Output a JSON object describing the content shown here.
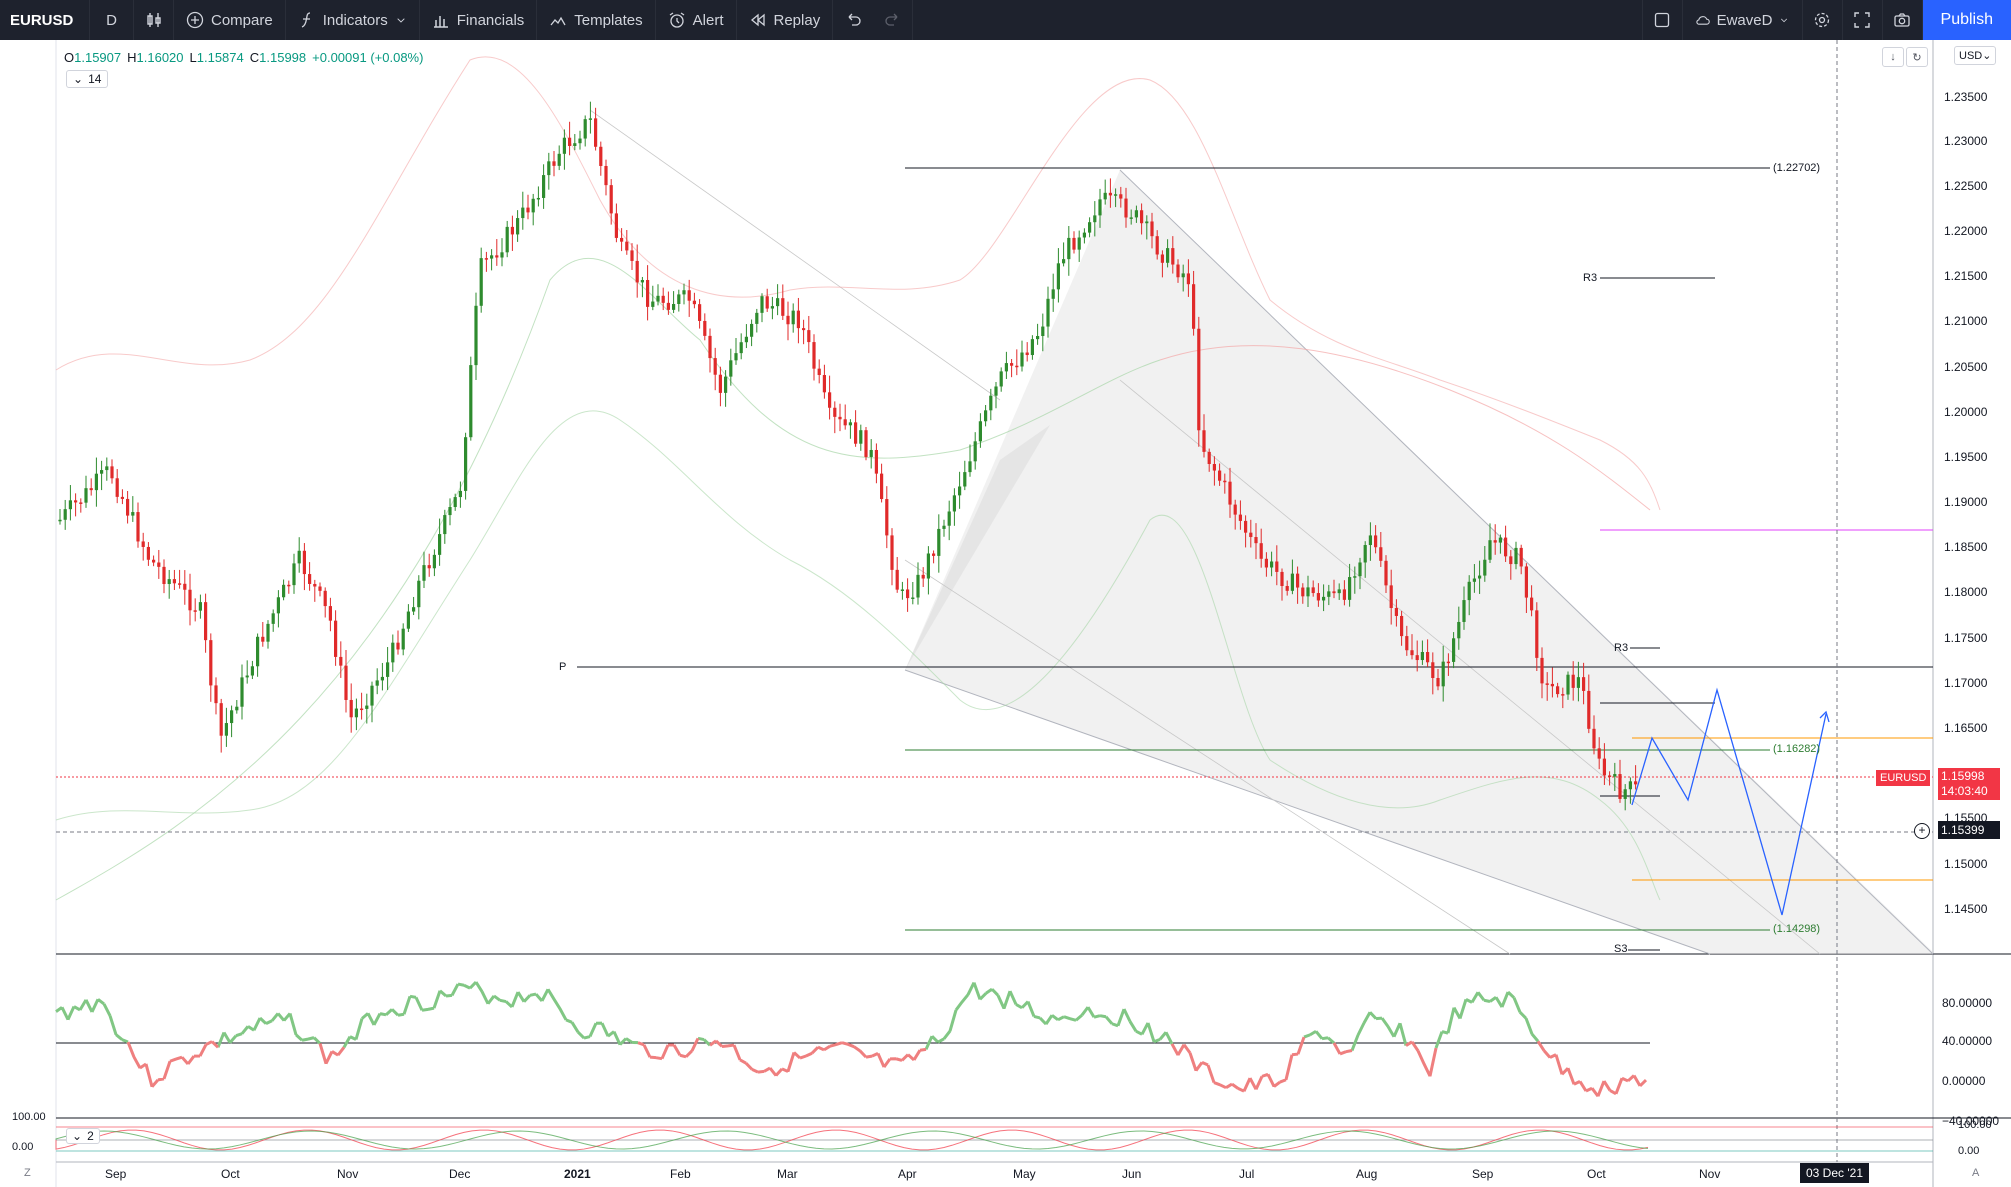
{
  "toolbar": {
    "symbol": "EURUSD",
    "interval": "D",
    "compare": "Compare",
    "indicators": "Indicators",
    "financials": "Financials",
    "templates": "Templates",
    "alert": "Alert",
    "replay": "Replay",
    "layout_name": "EwaveD",
    "publish": "Publish"
  },
  "legend": {
    "open_label": "O",
    "open": "1.15907",
    "high_label": "H",
    "high": "1.16020",
    "low_label": "L",
    "low": "1.15874",
    "close_label": "C",
    "close": "1.15998",
    "change": "+0.00091 (+0.08%)"
  },
  "indicator_chips": {
    "main_length": "14",
    "osc_length": "2"
  },
  "currency": "USD",
  "price_scale": [
    "1.23500",
    "1.23000",
    "1.22500",
    "1.22000",
    "1.21500",
    "1.21000",
    "1.20500",
    "1.20000",
    "1.19500",
    "1.19000",
    "1.18500",
    "1.18000",
    "1.17500",
    "1.17000",
    "1.16500",
    "1.15500",
    "1.15000",
    "1.14500"
  ],
  "osc_scale": [
    "80.00000",
    "40.00000",
    "0.00000",
    "−40.00000"
  ],
  "osc2_scale": [
    "100.00",
    "0.00"
  ],
  "time_axis": [
    "Sep",
    "Oct",
    "Nov",
    "Dec",
    "2021",
    "Feb",
    "Mar",
    "Apr",
    "May",
    "Jun",
    "Jul",
    "Aug",
    "Sep",
    "Oct",
    "Nov"
  ],
  "crosshair_date": "03 Dec '21",
  "corner_left": "Z",
  "corner_right": "A",
  "current_price": {
    "symbol": "EURUSD",
    "price": "1.15998",
    "countdown": "14:03:40"
  },
  "crosshair_price": "1.15399",
  "annotations": {
    "level_high": "(1.22702)",
    "level_mid": "(1.16282)",
    "level_low": "(1.14298)",
    "r3_upper": "R3",
    "r3_lower": "R3",
    "pivot": "P",
    "s3": "S3"
  },
  "colors": {
    "up": "#26a69a",
    "down": "#f23645",
    "up_candle": "#2e8b2e",
    "accent": "#2962ff",
    "toolbar_bg": "#1e222d"
  }
}
